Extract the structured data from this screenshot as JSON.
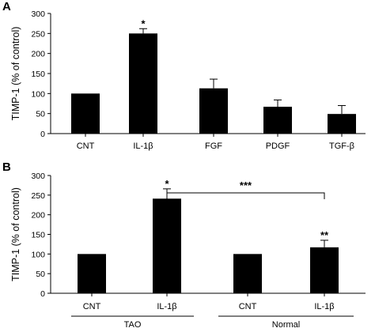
{
  "chart_data": [
    {
      "panel": "A",
      "type": "bar",
      "ylabel": "TIMP-1 (% of control)",
      "ylim": [
        0,
        300
      ],
      "yticks": [
        0,
        50,
        100,
        150,
        200,
        250,
        300
      ],
      "categories": [
        "CNT",
        "IL-1β",
        "FGF",
        "PDGF",
        "TGF-β"
      ],
      "values": [
        100,
        250,
        113,
        67,
        49
      ],
      "errors": [
        0,
        12,
        23,
        17,
        21
      ],
      "significance": [
        "",
        "*",
        "",
        "",
        ""
      ],
      "bar_color": "#000000"
    },
    {
      "panel": "B",
      "type": "bar",
      "ylabel": "TIMP-1 (% of control)",
      "ylim": [
        0,
        300
      ],
      "yticks": [
        0,
        50,
        100,
        150,
        200,
        250,
        300
      ],
      "categories": [
        "CNT",
        "IL-1β",
        "CNT",
        "IL-1β"
      ],
      "values": [
        100,
        241,
        100,
        117
      ],
      "errors": [
        0,
        25,
        0,
        18
      ],
      "significance": [
        "",
        "*",
        "",
        "**"
      ],
      "groups": [
        {
          "name": "TAO",
          "members": [
            0,
            1
          ]
        },
        {
          "name": "Normal",
          "members": [
            2,
            3
          ]
        }
      ],
      "comparison": {
        "from": 1,
        "to": 3,
        "label": "***"
      },
      "bar_color": "#000000"
    }
  ]
}
